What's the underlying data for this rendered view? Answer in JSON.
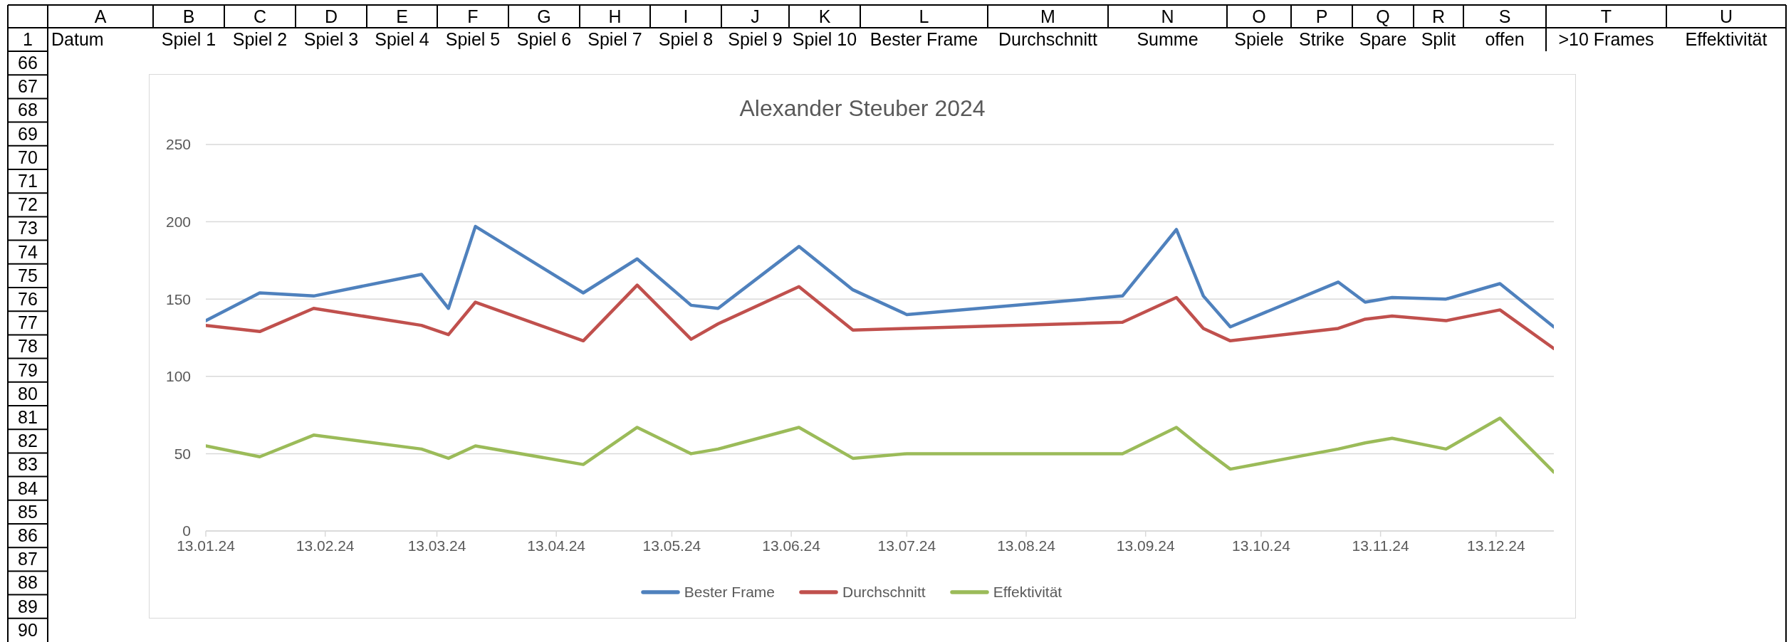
{
  "chart_data": {
    "type": "line",
    "title": "Alexander Steuber 2024",
    "x": [
      "2024-01-13",
      "2024-01-27",
      "2024-02-10",
      "2024-03-09",
      "2024-03-16",
      "2024-03-23",
      "2024-04-20",
      "2024-05-04",
      "2024-05-18",
      "2024-05-25",
      "2024-06-15",
      "2024-06-29",
      "2024-07-13",
      "2024-09-07",
      "2024-09-21",
      "2024-09-28",
      "2024-10-05",
      "2024-11-02",
      "2024-11-09",
      "2024-11-16",
      "2024-11-30",
      "2024-12-14",
      "2024-12-28"
    ],
    "series": [
      {
        "name": "Bester Frame",
        "color": "#4f81bd",
        "values": [
          136,
          154,
          152,
          166,
          144,
          197,
          154,
          176,
          146,
          144,
          184,
          156,
          140,
          152,
          195,
          152,
          132,
          161,
          148,
          151,
          150,
          160,
          132
        ]
      },
      {
        "name": "Durchschnitt",
        "color": "#c0504d",
        "values": [
          133,
          129,
          144,
          133,
          127,
          148,
          123,
          159,
          124,
          134,
          158,
          130,
          131,
          135,
          151,
          131,
          123,
          131,
          137,
          139,
          136,
          143,
          118
        ]
      },
      {
        "name": "Effektivität",
        "color": "#9bbb59",
        "values": [
          55,
          48,
          62,
          53,
          47,
          55,
          43,
          67,
          50,
          53,
          67,
          47,
          50,
          50,
          67,
          53,
          40,
          53,
          57,
          60,
          53,
          73,
          38
        ]
      }
    ],
    "xlim": [
      "2024-01-13",
      "2024-12-28"
    ],
    "xticks": [
      {
        "value": "2024-01-13",
        "label": "13.01.24"
      },
      {
        "value": "2024-02-13",
        "label": "13.02.24"
      },
      {
        "value": "2024-03-13",
        "label": "13.03.24"
      },
      {
        "value": "2024-04-13",
        "label": "13.04.24"
      },
      {
        "value": "2024-05-13",
        "label": "13.05.24"
      },
      {
        "value": "2024-06-13",
        "label": "13.06.24"
      },
      {
        "value": "2024-07-13",
        "label": "13.07.24"
      },
      {
        "value": "2024-08-13",
        "label": "13.08.24"
      },
      {
        "value": "2024-09-13",
        "label": "13.09.24"
      },
      {
        "value": "2024-10-13",
        "label": "13.10.24"
      },
      {
        "value": "2024-11-13",
        "label": "13.11.24"
      },
      {
        "value": "2024-12-13",
        "label": "13.12.24"
      }
    ],
    "ylim": [
      0,
      250
    ],
    "yticks": [
      0,
      50,
      100,
      150,
      200,
      250
    ],
    "grid": "y",
    "legend": "bottom",
    "annotations": [
      "A",
      "B",
      "C",
      "D",
      "E",
      "F",
      "G",
      "H",
      "I",
      "J",
      "K",
      "L",
      "M",
      "N",
      "O",
      "P",
      "Q",
      "R",
      "S",
      "T",
      "U",
      "Datum",
      "Spiel 1",
      "Spiel 2",
      "Spiel 3",
      "Spiel 4",
      "Spiel 5",
      "Spiel 6",
      "Spiel 7",
      "Spiel 8",
      "Spiel 9",
      "Spiel 10",
      "Bester Frame",
      "Durchschnitt",
      "Summe",
      "Spiele",
      "Strike",
      "Spare",
      "Split",
      "offen",
      ">10 Frames",
      "Effektivität",
      "1",
      "66",
      "67",
      "68",
      "69",
      "70",
      "71",
      "72",
      "73",
      "74",
      "75",
      "76",
      "77",
      "78",
      "79",
      "80",
      "81",
      "82",
      "83",
      "84",
      "85",
      "86",
      "87",
      "88",
      "89",
      "90"
    ]
  }
}
